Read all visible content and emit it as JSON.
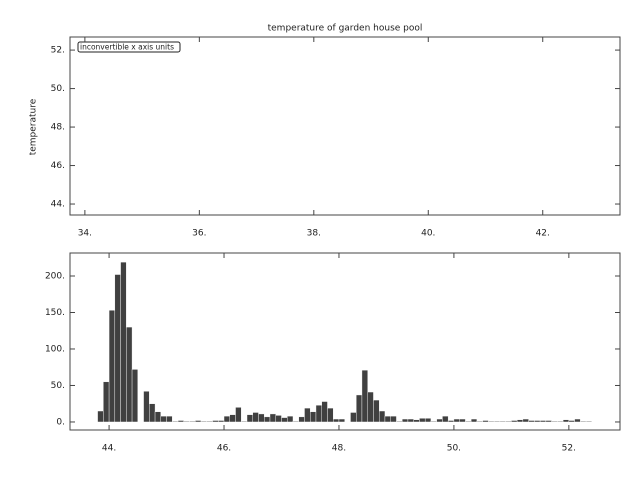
{
  "chart_data": [
    {
      "type": "line",
      "title": "temperature of garden house pool",
      "y_label": "temperature",
      "annotation": "inconvertible x axis units",
      "xlim": [
        33.74,
        43.35
      ],
      "ylim": [
        43.43,
        52.68
      ],
      "xticks": [
        {
          "value": 34,
          "label": "34."
        },
        {
          "value": 36,
          "label": "36."
        },
        {
          "value": 38,
          "label": "38."
        },
        {
          "value": 40,
          "label": "40."
        },
        {
          "value": 42,
          "label": "42."
        }
      ],
      "yticks": [
        {
          "value": 44,
          "label": "44."
        },
        {
          "value": 46,
          "label": "46."
        },
        {
          "value": 48,
          "label": "48."
        },
        {
          "value": 50,
          "label": "50."
        },
        {
          "value": 52,
          "label": "52."
        }
      ]
    },
    {
      "type": "histogram",
      "color": "#404040",
      "xlim": [
        43.32,
        52.89
      ],
      "ylim": [
        -11,
        231.5
      ],
      "xticks": [
        {
          "value": 44,
          "label": "44."
        },
        {
          "value": 46,
          "label": "46."
        },
        {
          "value": 48,
          "label": "48."
        },
        {
          "value": 50,
          "label": "50."
        },
        {
          "value": 52,
          "label": "52."
        }
      ],
      "yticks": [
        {
          "value": 0,
          "label": "0."
        },
        {
          "value": 50,
          "label": "50."
        },
        {
          "value": 100,
          "label": "100."
        },
        {
          "value": 150,
          "label": "150."
        },
        {
          "value": 200,
          "label": "200."
        }
      ],
      "bins": [
        43.8,
        43.9,
        44.0,
        44.1,
        44.2,
        44.3,
        44.4,
        44.5,
        44.6,
        44.7,
        44.8,
        44.9,
        45.0,
        45.1,
        45.2,
        45.3,
        45.4,
        45.5,
        45.6,
        45.7,
        45.8,
        45.9,
        46.0,
        46.1,
        46.2,
        46.3,
        46.4,
        46.5,
        46.6,
        46.7,
        46.8,
        46.9,
        47.0,
        47.1,
        47.2,
        47.3,
        47.4,
        47.5,
        47.6,
        47.7,
        47.8,
        47.9,
        48.0,
        48.1,
        48.2,
        48.3,
        48.4,
        48.5,
        48.6,
        48.7,
        48.8,
        48.9,
        49.0,
        49.1,
        49.2,
        49.3,
        49.4,
        49.5,
        49.6,
        49.7,
        49.8,
        49.9,
        50.0,
        50.1,
        50.2,
        50.3,
        50.4,
        50.5,
        50.6,
        50.7,
        50.8,
        50.9,
        51.0,
        51.1,
        51.2,
        51.3,
        51.4,
        51.5,
        51.6,
        51.7,
        51.8,
        51.9,
        52.0,
        52.1,
        52.2,
        52.3,
        52.4
      ],
      "values": [
        15,
        55,
        153,
        202,
        219,
        130,
        72,
        0,
        42,
        25,
        14,
        8,
        8,
        1,
        2,
        1,
        1,
        2,
        1,
        1,
        2,
        2,
        8,
        10,
        20,
        1,
        10,
        13,
        11,
        7,
        11,
        9,
        6,
        8,
        1,
        7,
        19,
        14,
        23,
        28,
        19,
        4,
        4,
        0,
        13,
        37,
        71,
        41,
        30,
        15,
        8,
        8,
        1,
        4,
        4,
        3,
        5,
        5,
        1,
        4,
        8,
        2,
        4,
        4,
        1,
        4,
        1,
        2,
        1,
        1,
        1,
        1,
        2,
        3,
        4,
        2,
        2,
        2,
        2,
        1,
        1,
        3,
        2,
        4,
        1,
        1
      ]
    }
  ]
}
